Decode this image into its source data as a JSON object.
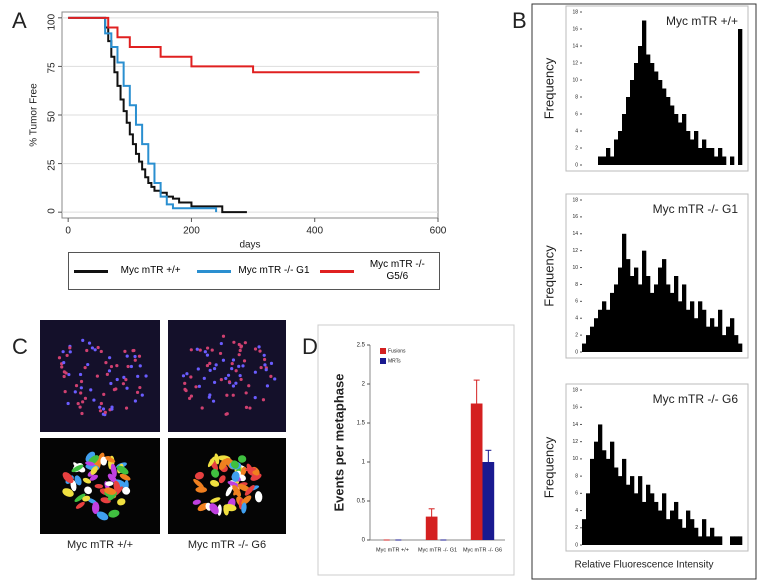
{
  "panel_labels": [
    "A",
    "B",
    "C",
    "D"
  ],
  "histogram_x_label": "Relative Fluorescence Intensity",
  "images": {
    "captions": [
      "Myc mTR +/+",
      "Myc mTR -/- G6"
    ]
  },
  "chart_data": [
    {
      "type": "line",
      "step": "post",
      "x_label": "days",
      "y_label": "% Tumor Free",
      "xlim": [
        -10,
        600
      ],
      "ylim": [
        -3,
        103
      ],
      "xticks": [
        0,
        200,
        400,
        600
      ],
      "yticks": [
        0,
        25,
        50,
        75,
        100
      ],
      "grid": true,
      "series": [
        {
          "name": "Myc mTR +/+",
          "color": "#111111",
          "x": [
            0,
            55,
            60,
            65,
            70,
            75,
            80,
            85,
            90,
            95,
            100,
            105,
            110,
            115,
            120,
            125,
            130,
            135,
            140,
            150,
            160,
            170,
            180,
            200,
            230,
            250,
            290
          ],
          "values": [
            100,
            100,
            95,
            88,
            80,
            72,
            65,
            58,
            52,
            46,
            40,
            35,
            30,
            26,
            22,
            18,
            15,
            13,
            11,
            10,
            8,
            7,
            5,
            3,
            3,
            0,
            0
          ]
        },
        {
          "name": "Myc mTR -/- G1",
          "color": "#2a8fd0",
          "x": [
            0,
            45,
            60,
            70,
            80,
            90,
            100,
            110,
            120,
            130,
            140,
            150,
            160,
            170,
            240
          ],
          "values": [
            100,
            100,
            92,
            85,
            77,
            65,
            55,
            45,
            35,
            25,
            15,
            8,
            4,
            2,
            0
          ]
        },
        {
          "name": "Myc mTR -/- G5/6",
          "color": "#e02020",
          "x": [
            0,
            60,
            65,
            80,
            100,
            150,
            200,
            300,
            570
          ],
          "values": [
            100,
            100,
            95,
            90,
            85,
            80,
            75,
            72,
            72
          ]
        }
      ]
    },
    {
      "type": "histogram",
      "title": "Myc mTR +/+",
      "y_label": "Frequency",
      "color": "#000000",
      "bins": [
        0,
        1,
        2,
        3,
        4,
        5,
        6,
        7,
        8,
        9,
        10,
        11,
        12,
        13,
        14,
        15,
        16,
        17,
        18,
        19,
        20,
        21,
        22,
        23,
        24,
        25,
        26,
        27,
        28,
        29,
        30,
        31,
        32,
        33,
        34,
        35,
        36,
        37,
        38,
        39,
        40
      ],
      "values": [
        0,
        0,
        0,
        0,
        1,
        1,
        2,
        1,
        3,
        4,
        6,
        8,
        10,
        12,
        14,
        17,
        13,
        12,
        11,
        10,
        9,
        8,
        7,
        6,
        5,
        6,
        4,
        3,
        4,
        2,
        3,
        2,
        2,
        1,
        2,
        1,
        0,
        1,
        0,
        16
      ],
      "xlim": [
        0,
        40
      ],
      "ylim": [
        0,
        18
      ],
      "yticks": [
        0,
        2,
        4,
        6,
        8,
        10,
        12,
        14,
        16,
        18
      ]
    },
    {
      "type": "histogram",
      "title": "Myc mTR -/- G1",
      "y_label": "Frequency",
      "color": "#000000",
      "bins": [
        0,
        1,
        2,
        3,
        4,
        5,
        6,
        7,
        8,
        9,
        10,
        11,
        12,
        13,
        14,
        15,
        16,
        17,
        18,
        19,
        20,
        21,
        22,
        23,
        24,
        25,
        26,
        27,
        28,
        29,
        30,
        31,
        32,
        33,
        34,
        35,
        36,
        37,
        38,
        39,
        40
      ],
      "values": [
        1,
        2,
        3,
        4,
        5,
        6,
        5,
        7,
        8,
        10,
        14,
        11,
        9,
        10,
        8,
        12,
        9,
        7,
        8,
        10,
        11,
        8,
        7,
        9,
        6,
        8,
        5,
        6,
        4,
        6,
        5,
        3,
        4,
        3,
        5,
        2,
        3,
        4,
        2,
        1
      ],
      "xlim": [
        0,
        40
      ],
      "ylim": [
        0,
        18
      ],
      "yticks": [
        0,
        2,
        4,
        6,
        8,
        10,
        12,
        14,
        16,
        18
      ]
    },
    {
      "type": "histogram",
      "title": "Myc mTR -/- G6",
      "y_label": "Frequency",
      "color": "#000000",
      "bins": [
        0,
        1,
        2,
        3,
        4,
        5,
        6,
        7,
        8,
        9,
        10,
        11,
        12,
        13,
        14,
        15,
        16,
        17,
        18,
        19,
        20,
        21,
        22,
        23,
        24,
        25,
        26,
        27,
        28,
        29,
        30,
        31,
        32,
        33,
        34,
        35,
        36,
        37,
        38,
        39,
        40
      ],
      "values": [
        3,
        6,
        10,
        12,
        14,
        11,
        10,
        12,
        9,
        8,
        10,
        7,
        8,
        6,
        8,
        5,
        7,
        6,
        5,
        4,
        6,
        3,
        4,
        5,
        3,
        2,
        4,
        3,
        2,
        1,
        3,
        1,
        2,
        1,
        1,
        0,
        0,
        1,
        1,
        1
      ],
      "xlim": [
        0,
        40
      ],
      "ylim": [
        0,
        18
      ],
      "yticks": [
        0,
        2,
        4,
        6,
        8,
        10,
        12,
        14,
        16,
        18
      ]
    },
    {
      "type": "bar",
      "y_label": "Events per metaphase",
      "categories": [
        "Myc mTR +/+",
        "Myc mTR -/- G1",
        "Myc mTR -/- G6"
      ],
      "ylim": [
        0,
        2.5
      ],
      "yticks": [
        0,
        0.5,
        1,
        1.5,
        2,
        2.5
      ],
      "series": [
        {
          "name": "Fusions",
          "color": "#d42020",
          "values": [
            0,
            0.3,
            1.75
          ],
          "errors": [
            0,
            0.1,
            0.3
          ]
        },
        {
          "name": "MRTs",
          "color": "#1a1a90",
          "values": [
            0,
            0,
            1.0
          ],
          "errors": [
            0,
            0,
            0.15
          ]
        }
      ]
    }
  ]
}
